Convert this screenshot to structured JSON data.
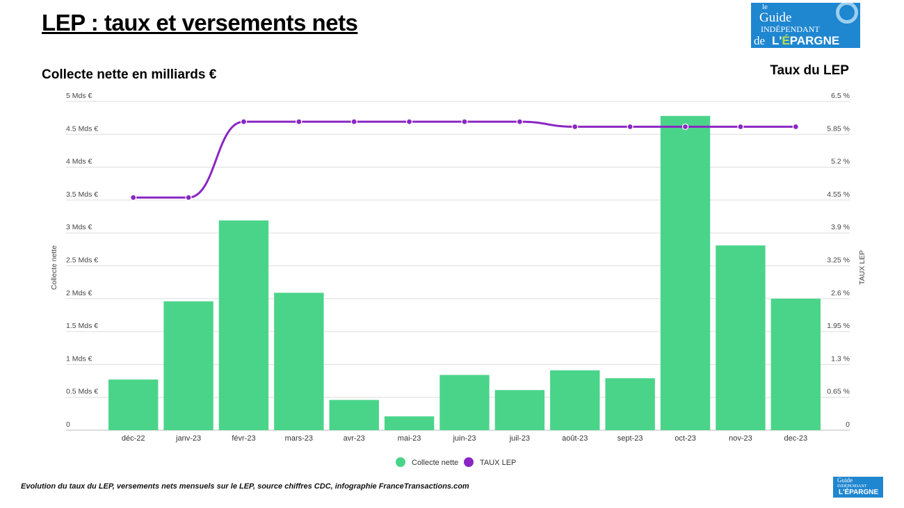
{
  "header": {
    "title": "LEP : taux et versements nets",
    "left_subtitle": "Collecte nette en milliards €",
    "right_subtitle": "Taux du LEP",
    "logo_text": "le Guide INDÉPENDANT de L'ÉPARGNE FranceTransactions.com"
  },
  "caption": "Evolution du taux du LEP, versements nets mensuels sur le LEP, source chiffres CDC, infographie FranceTransactions.com",
  "chart_data": {
    "type": "bar+line",
    "categories": [
      "déc-22",
      "janv-23",
      "févr-23",
      "mars-23",
      "avr-23",
      "mai-23",
      "juin-23",
      "juil-23",
      "août-23",
      "sept-23",
      "oct-23",
      "nov-23",
      "dec-23"
    ],
    "series": [
      {
        "name": "Collecte nette",
        "type": "bar",
        "axis": "left",
        "color": "#4ad48a",
        "values": [
          0.77,
          1.96,
          3.19,
          2.09,
          0.46,
          0.21,
          0.84,
          0.61,
          0.91,
          0.79,
          4.78,
          2.81,
          2.0
        ]
      },
      {
        "name": "TAUX LEP",
        "type": "line",
        "axis": "right",
        "color": "#8a27c2",
        "values": [
          4.6,
          4.6,
          6.1,
          6.1,
          6.1,
          6.1,
          6.1,
          6.1,
          6.0,
          6.0,
          6.0,
          6.0,
          6.0
        ]
      }
    ],
    "ylabel": "Collecte nette",
    "y2label": "TAUX LEP",
    "ylim": [
      0,
      5
    ],
    "y2lim": [
      0,
      6.5
    ],
    "yticks": [
      "0",
      "0.5 Mds €",
      "1 Mds €",
      "1.5 Mds €",
      "2 Mds €",
      "2.5 Mds €",
      "3 Mds €",
      "3.5 Mds €",
      "4 Mds €",
      "4.5 Mds €",
      "5 Mds €"
    ],
    "y2ticks": [
      "0",
      "0.65 %",
      "1.3 %",
      "1.95 %",
      "2.6 %",
      "3.25 %",
      "3.9 %",
      "4.55 %",
      "5.2 %",
      "5.85 %",
      "6.5 %"
    ],
    "grid": true,
    "legend": "bottom"
  }
}
